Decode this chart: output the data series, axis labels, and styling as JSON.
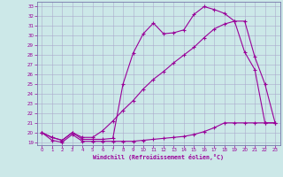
{
  "xlabel": "Windchill (Refroidissement éolien,°C)",
  "line_color": "#990099",
  "bg_color": "#cce8e8",
  "grid_color": "#aaaacc",
  "spine_color": "#7777aa",
  "xlim": [
    -0.5,
    23.5
  ],
  "ylim": [
    18.7,
    33.5
  ],
  "xticks": [
    0,
    1,
    2,
    3,
    4,
    5,
    6,
    7,
    8,
    9,
    10,
    11,
    12,
    13,
    14,
    15,
    16,
    17,
    18,
    19,
    20,
    21,
    22,
    23
  ],
  "yticks": [
    19,
    20,
    21,
    22,
    23,
    24,
    25,
    26,
    27,
    28,
    29,
    30,
    31,
    32,
    33
  ],
  "line1_x": [
    0,
    1,
    2,
    3,
    4,
    5,
    6,
    7,
    8,
    9,
    10,
    11,
    12,
    13,
    14,
    15,
    16,
    17,
    18,
    19,
    20,
    21,
    22,
    23
  ],
  "line1_y": [
    20.0,
    19.2,
    19.0,
    19.8,
    19.1,
    19.1,
    19.1,
    19.1,
    19.1,
    19.1,
    19.2,
    19.3,
    19.4,
    19.5,
    19.6,
    19.8,
    20.1,
    20.5,
    21.0,
    21.0,
    21.0,
    21.0,
    21.0,
    21.0
  ],
  "line2_x": [
    0,
    1,
    2,
    3,
    4,
    5,
    6,
    7,
    8,
    9,
    10,
    11,
    12,
    13,
    14,
    15,
    16,
    17,
    18,
    19,
    20,
    21,
    22,
    23
  ],
  "line2_y": [
    20.0,
    19.5,
    19.2,
    20.0,
    19.5,
    19.5,
    20.2,
    21.2,
    22.3,
    23.3,
    24.5,
    25.5,
    26.3,
    27.2,
    28.0,
    28.8,
    29.8,
    30.7,
    31.2,
    31.5,
    31.5,
    27.8,
    25.0,
    21.0
  ],
  "line3_x": [
    0,
    1,
    2,
    3,
    4,
    5,
    6,
    7,
    8,
    9,
    10,
    11,
    12,
    13,
    14,
    15,
    16,
    17,
    18,
    19,
    20,
    21,
    22,
    23
  ],
  "line3_y": [
    20.0,
    19.5,
    19.2,
    20.0,
    19.3,
    19.3,
    19.3,
    19.4,
    25.0,
    28.2,
    30.2,
    31.3,
    30.2,
    30.3,
    30.6,
    32.2,
    33.0,
    32.7,
    32.3,
    31.5,
    28.3,
    26.5,
    21.0,
    21.0
  ]
}
